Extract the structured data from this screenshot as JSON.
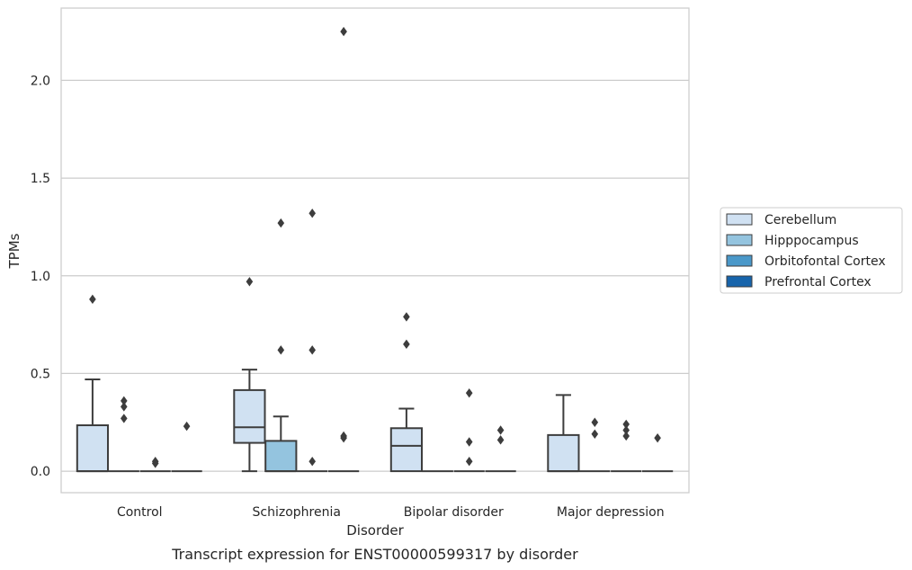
{
  "caption": "Transcript expression for ENST00000599317 by disorder",
  "chart_data": {
    "type": "box",
    "xlabel": "Disorder",
    "ylabel": "TPMs",
    "ylim": [
      -0.11,
      2.37
    ],
    "yticks": [
      0.0,
      0.5,
      1.0,
      1.5,
      2.0
    ],
    "ytick_labels": [
      "0.0",
      "0.5",
      "1.0",
      "1.5",
      "2.0"
    ],
    "grid": "horizontal",
    "legend_position": "right",
    "categories": [
      "Control",
      "Schizophrenia",
      "Bipolar disorder",
      "Major depression"
    ],
    "series": [
      {
        "name": "Cerebellum",
        "color": "#d0e1f2",
        "boxes": [
          {
            "q1": 0.0,
            "median": 0.0,
            "q3": 0.235,
            "whislo": 0.0,
            "whishi": 0.47,
            "fliers": [
              0.88
            ]
          },
          {
            "q1": 0.145,
            "median": 0.225,
            "q3": 0.415,
            "whislo": 0.0,
            "whishi": 0.52,
            "fliers": [
              0.97
            ]
          },
          {
            "q1": 0.0,
            "median": 0.13,
            "q3": 0.22,
            "whislo": 0.0,
            "whishi": 0.32,
            "fliers": [
              0.65,
              0.79
            ]
          },
          {
            "q1": 0.0,
            "median": 0.0,
            "q3": 0.185,
            "whislo": 0.0,
            "whishi": 0.39,
            "fliers": []
          }
        ]
      },
      {
        "name": "Hipppocampus",
        "color": "#94c4df",
        "boxes": [
          {
            "q1": 0.0,
            "median": 0.0,
            "q3": 0.0,
            "whislo": 0.0,
            "whishi": 0.0,
            "fliers": [
              0.27,
              0.33,
              0.36
            ]
          },
          {
            "q1": 0.0,
            "median": 0.0,
            "q3": 0.155,
            "whislo": 0.0,
            "whishi": 0.28,
            "fliers": [
              0.62,
              1.27
            ]
          },
          {
            "q1": 0.0,
            "median": 0.0,
            "q3": 0.0,
            "whislo": 0.0,
            "whishi": 0.0,
            "fliers": []
          },
          {
            "q1": 0.0,
            "median": 0.0,
            "q3": 0.0,
            "whislo": 0.0,
            "whishi": 0.0,
            "fliers": [
              0.19,
              0.25
            ]
          }
        ]
      },
      {
        "name": "Orbitofontal Cortex",
        "color": "#4a98c9",
        "boxes": [
          {
            "q1": 0.0,
            "median": 0.0,
            "q3": 0.0,
            "whislo": 0.0,
            "whishi": 0.0,
            "fliers": [
              0.04,
              0.05
            ]
          },
          {
            "q1": 0.0,
            "median": 0.0,
            "q3": 0.0,
            "whislo": 0.0,
            "whishi": 0.0,
            "fliers": [
              0.05,
              0.62,
              1.32
            ]
          },
          {
            "q1": 0.0,
            "median": 0.0,
            "q3": 0.0,
            "whislo": 0.0,
            "whishi": 0.0,
            "fliers": [
              0.05,
              0.15,
              0.4
            ]
          },
          {
            "q1": 0.0,
            "median": 0.0,
            "q3": 0.0,
            "whislo": 0.0,
            "whishi": 0.0,
            "fliers": [
              0.18,
              0.21,
              0.24
            ]
          }
        ]
      },
      {
        "name": "Prefrontal Cortex",
        "color": "#1764ab",
        "boxes": [
          {
            "q1": 0.0,
            "median": 0.0,
            "q3": 0.0,
            "whislo": 0.0,
            "whishi": 0.0,
            "fliers": [
              0.23
            ]
          },
          {
            "q1": 0.0,
            "median": 0.0,
            "q3": 0.0,
            "whislo": 0.0,
            "whishi": 0.0,
            "fliers": [
              0.17,
              0.18,
              2.25
            ]
          },
          {
            "q1": 0.0,
            "median": 0.0,
            "q3": 0.0,
            "whislo": 0.0,
            "whishi": 0.0,
            "fliers": [
              0.16,
              0.21
            ]
          },
          {
            "q1": 0.0,
            "median": 0.0,
            "q3": 0.0,
            "whislo": 0.0,
            "whishi": 0.0,
            "fliers": [
              0.17
            ]
          }
        ]
      }
    ],
    "colors": {
      "line": "#3d3d3d",
      "grid": "#cccccc",
      "frame": "#cccccc",
      "flier": "#3d3d3d"
    }
  }
}
